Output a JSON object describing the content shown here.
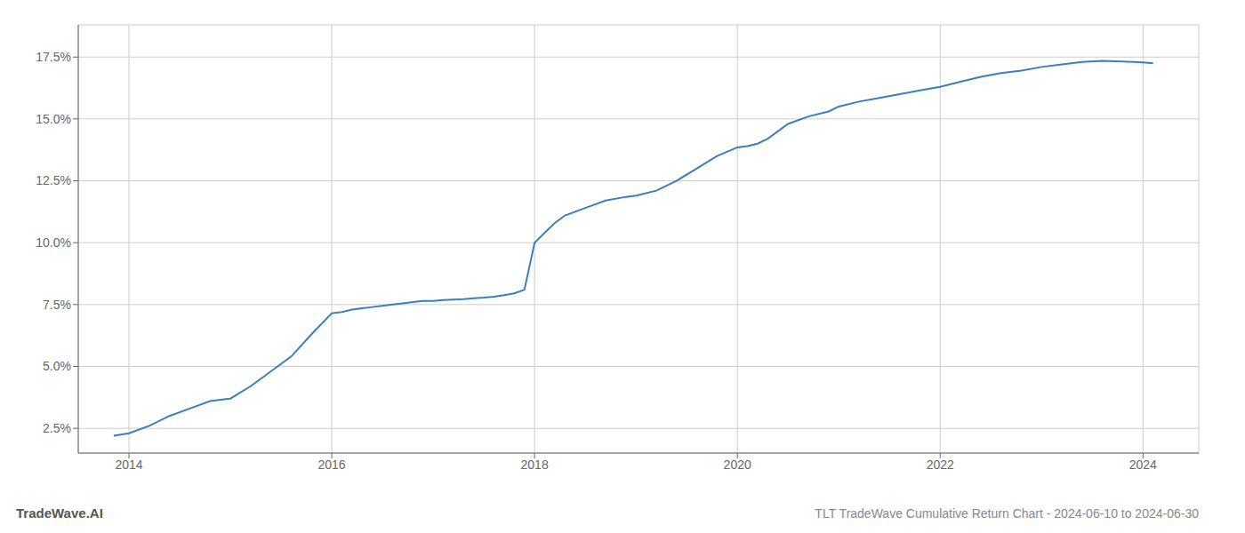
{
  "chart_data": {
    "type": "line",
    "title": "TLT TradeWave Cumulative Return Chart - 2024-06-10 to 2024-06-30",
    "watermark": "TradeWave.AI",
    "color": "#3a7ebf",
    "grid": true,
    "x": [
      2013.85,
      2014.0,
      2014.2,
      2014.4,
      2014.6,
      2014.8,
      2015.0,
      2015.2,
      2015.4,
      2015.6,
      2015.8,
      2016.0,
      2016.1,
      2016.2,
      2016.3,
      2016.4,
      2016.5,
      2016.6,
      2016.7,
      2016.8,
      2016.9,
      2017.0,
      2017.1,
      2017.2,
      2017.3,
      2017.4,
      2017.5,
      2017.6,
      2017.7,
      2017.8,
      2017.9,
      2018.0,
      2018.1,
      2018.2,
      2018.3,
      2018.5,
      2018.7,
      2018.9,
      2019.0,
      2019.2,
      2019.4,
      2019.6,
      2019.8,
      2020.0,
      2020.1,
      2020.2,
      2020.3,
      2020.5,
      2020.7,
      2020.9,
      2021.0,
      2021.2,
      2021.4,
      2021.6,
      2021.8,
      2022.0,
      2022.2,
      2022.4,
      2022.6,
      2022.8,
      2023.0,
      2023.2,
      2023.4,
      2023.6,
      2023.8,
      2024.0,
      2024.1
    ],
    "values": [
      2.2,
      2.3,
      2.6,
      3.0,
      3.3,
      3.6,
      3.7,
      4.2,
      4.8,
      5.4,
      6.3,
      7.15,
      7.2,
      7.3,
      7.35,
      7.4,
      7.45,
      7.5,
      7.55,
      7.6,
      7.65,
      7.65,
      7.68,
      7.7,
      7.72,
      7.75,
      7.78,
      7.82,
      7.88,
      7.95,
      8.1,
      10.0,
      10.4,
      10.8,
      11.1,
      11.4,
      11.7,
      11.85,
      11.9,
      12.1,
      12.5,
      13.0,
      13.5,
      13.85,
      13.9,
      14.0,
      14.2,
      14.8,
      15.1,
      15.3,
      15.5,
      15.7,
      15.85,
      16.0,
      16.15,
      16.3,
      16.5,
      16.7,
      16.85,
      16.95,
      17.1,
      17.2,
      17.3,
      17.35,
      17.32,
      17.28,
      17.25
    ],
    "xlim": [
      2013.5,
      2024.55
    ],
    "ylim": [
      1.5,
      18.8
    ],
    "xticks": [
      2014,
      2016,
      2018,
      2020,
      2022,
      2024
    ],
    "yticks": [
      {
        "value": 2.5,
        "label": "2.5%"
      },
      {
        "value": 5.0,
        "label": "5.0%"
      },
      {
        "value": 7.5,
        "label": "7.5%"
      },
      {
        "value": 10.0,
        "label": "10.0%"
      },
      {
        "value": 12.5,
        "label": "12.5%"
      },
      {
        "value": 15.0,
        "label": "15.0%"
      },
      {
        "value": 17.5,
        "label": "17.5%"
      }
    ]
  }
}
